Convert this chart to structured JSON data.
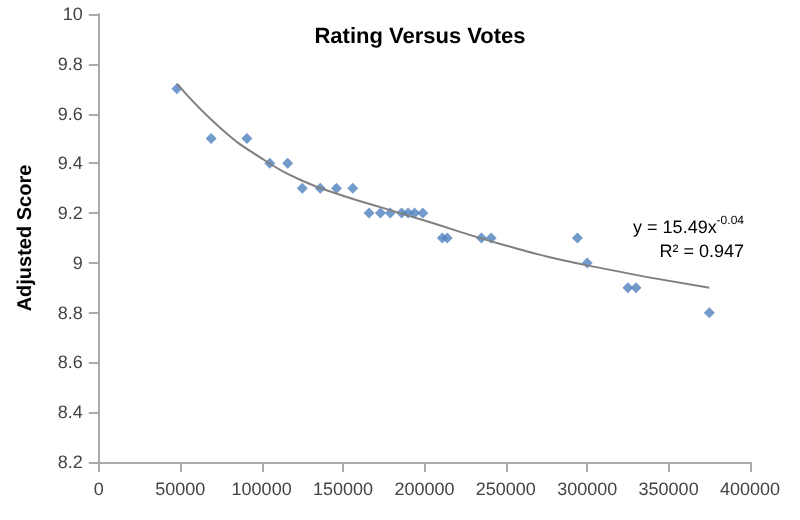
{
  "chart_data": {
    "type": "scatter",
    "title": "Rating Versus Votes",
    "ylabel": "Adjusted Score",
    "annotations": [
      "y = 15.49x$^{-0.04}$",
      "R² = 0.947"
    ],
    "xlim": [
      0,
      400000
    ],
    "xticks": [
      0,
      50000,
      100000,
      150000,
      200000,
      250000,
      300000,
      350000,
      400000
    ],
    "ylim": [
      8.2,
      10
    ],
    "yticks": [
      8.2,
      8.4,
      8.6,
      8.8,
      9,
      9.2,
      9.4,
      9.6,
      9.8,
      10
    ],
    "grid": false,
    "marker": "diamond",
    "series": [
      {
        "color": "#4f81bd",
        "x": [
          48000,
          69000,
          91000,
          105000,
          116000,
          125000,
          136000,
          146000,
          156000,
          166000,
          173000,
          179000,
          186000,
          190000,
          194000,
          199000,
          211000,
          214000,
          235000,
          241000,
          294000,
          300000,
          325000,
          330000,
          375000
        ],
        "values": [
          9.7,
          9.5,
          9.5,
          9.4,
          9.4,
          9.3,
          9.3,
          9.3,
          9.3,
          9.2,
          9.2,
          9.2,
          9.2,
          9.2,
          9.2,
          9.2,
          9.1,
          9.1,
          9.1,
          9.1,
          9.1,
          9.0,
          8.9,
          8.9,
          8.8
        ]
      },
      {
        "type": "line",
        "color": "#808080",
        "marker": "none",
        "x": [
          48000,
          75000,
          100000,
          125000,
          150000,
          175000,
          200000,
          250000,
          300000,
          375000
        ],
        "values": [
          9.72,
          9.54,
          9.42,
          9.33,
          9.27,
          9.22,
          9.17,
          9.07,
          8.99,
          8.9
        ]
      }
    ]
  }
}
